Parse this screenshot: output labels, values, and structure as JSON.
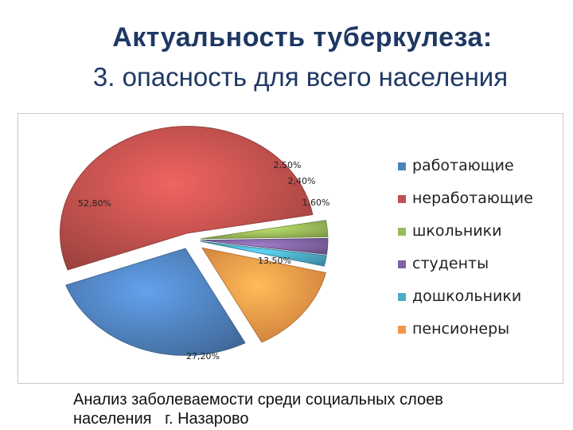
{
  "slide": {
    "title": "Актуальность туберкулеза:",
    "subtitle": "3. опасность для всего населения",
    "caption_line1": "Анализ заболеваемости среди социальных слоев",
    "caption_line2": "населения   г. Назарово"
  },
  "chart_data": {
    "type": "pie",
    "title": "",
    "legend_position": "right",
    "categories": [
      "работающие",
      "неработающие",
      "школьники",
      "студенты",
      "дошкольники",
      "пенсионеры"
    ],
    "values": [
      27.2,
      52.8,
      2.5,
      2.4,
      1.6,
      13.5
    ],
    "labels": [
      "27,20%",
      "52,80%",
      "2,50%",
      "2,40%",
      "1,60%",
      "13,50%"
    ],
    "colors": [
      "#4f81bd",
      "#c0504d",
      "#9bbb59",
      "#8064a2",
      "#4bacc6",
      "#f79646"
    ]
  }
}
